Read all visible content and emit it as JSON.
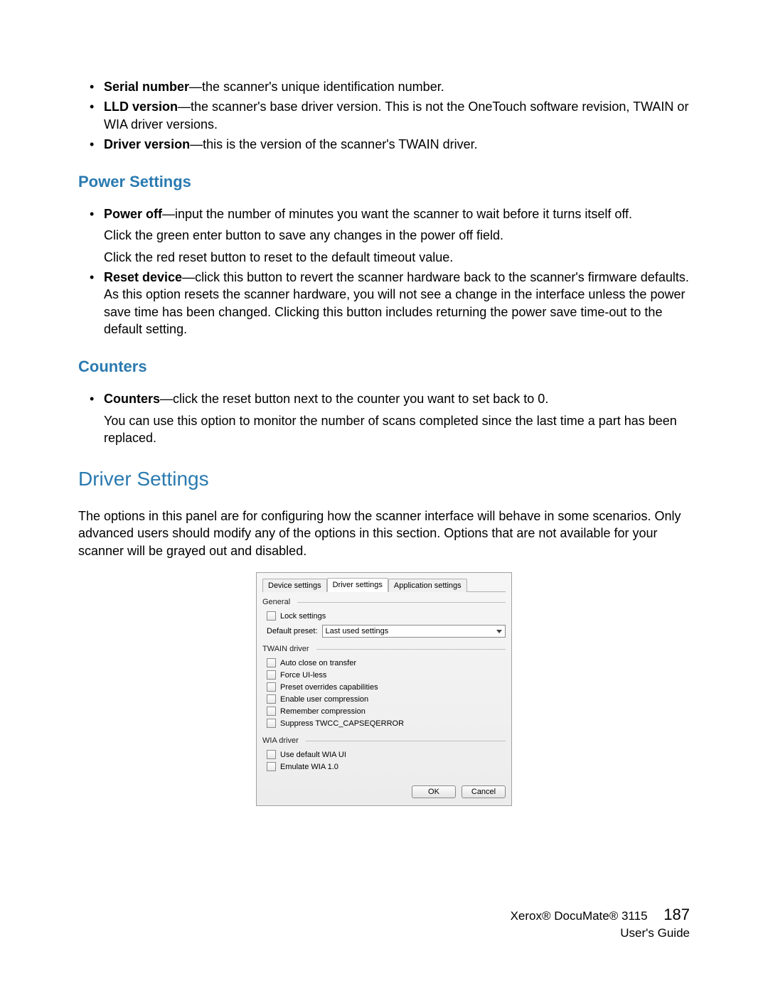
{
  "top_bullets": [
    {
      "term": "Serial number",
      "text": "—the scanner's unique identification number."
    },
    {
      "term": "LLD version",
      "text": "—the scanner's base driver version. This is not the OneTouch software revision, TWAIN or WIA driver versions."
    },
    {
      "term": "Driver version",
      "text": "—this is the version of the scanner's TWAIN driver."
    }
  ],
  "power": {
    "heading": "Power Settings",
    "bullets": [
      {
        "term": "Power off",
        "text": "—input the number of minutes you want the scanner to wait before it turns itself off.",
        "subs": [
          "Click the green enter button to save any changes in the power off field.",
          "Click the red reset button to reset to the default timeout value."
        ]
      },
      {
        "term": "Reset device",
        "text": "—click this button to revert the scanner hardware back to the scanner's firmware defaults. As this option resets the scanner hardware, you will not see a change in the interface unless the power save time has been changed. Clicking this button includes returning the power save time-out to the default setting.",
        "subs": []
      }
    ]
  },
  "counters": {
    "heading": "Counters",
    "bullets": [
      {
        "term": "Counters",
        "text": "—click the reset button next to the counter you want to set back to 0.",
        "subs": [
          "You can use this option to monitor the number of scans completed since the last time a part has been replaced."
        ]
      }
    ]
  },
  "driver_settings": {
    "heading": "Driver Settings",
    "intro": "The options in this panel are for configuring how the scanner interface will behave in some scenarios. Only advanced users should modify any of the options in this section. Options that are not available for your scanner will be grayed out and disabled."
  },
  "dialog": {
    "tabs": [
      "Device settings",
      "Driver settings",
      "Application settings"
    ],
    "active_tab": 1,
    "general": {
      "title": "General",
      "lock_settings": "Lock settings",
      "default_preset_label": "Default preset:",
      "default_preset_value": "Last used settings"
    },
    "twain": {
      "title": "TWAIN driver",
      "options": [
        "Auto close on transfer",
        "Force UI-less",
        "Preset overrides capabilities",
        "Enable user compression",
        "Remember compression",
        "Suppress TWCC_CAPSEQERROR"
      ]
    },
    "wia": {
      "title": "WIA driver",
      "options": [
        "Use default WIA UI",
        "Emulate WIA 1.0"
      ]
    },
    "ok": "OK",
    "cancel": "Cancel"
  },
  "footer": {
    "product": "Xerox® DocuMate® 3115",
    "guide": "User's Guide",
    "page": "187"
  }
}
